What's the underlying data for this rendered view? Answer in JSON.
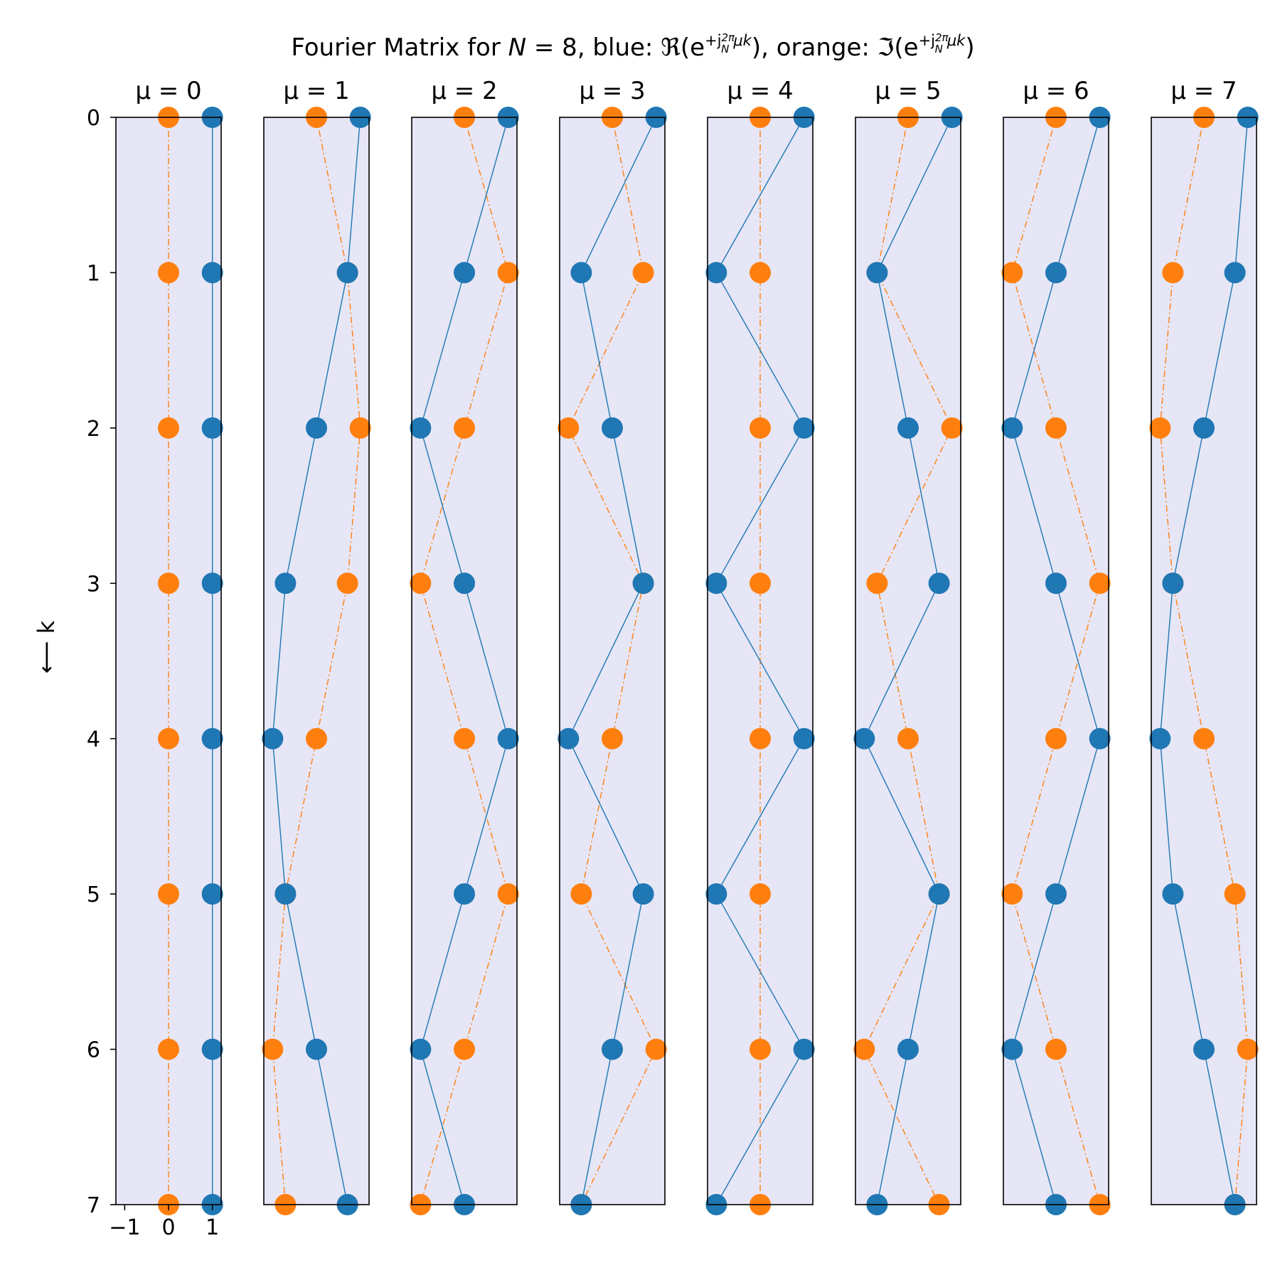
{
  "figure": {
    "title_parts": {
      "prefix": "Fourier Matrix for ",
      "n_var": "N",
      "n_eq": " = 8, blue: ",
      "re_sym": "ℜ",
      "e_open": "(e",
      "exp_sign": "+j",
      "frac_num": "2π",
      "frac_den": "N",
      "exp_rest": "μk",
      "close_mid": "), orange: ",
      "im_sym": "ℑ",
      "close_end": ")"
    },
    "ylabel": "⟵ k",
    "panel_title_prefix": "μ = "
  },
  "colors": {
    "real": "#1f77b4",
    "imag": "#ff7f0e",
    "panel_bg": "#e6e6f6",
    "frame": "#000000"
  },
  "chart_data": {
    "type": "line",
    "N": 8,
    "panels": [
      {
        "mu": 0,
        "title": "μ = 0",
        "real": [
          1,
          1,
          1,
          1,
          1,
          1,
          1,
          1
        ],
        "imag": [
          0,
          0,
          0,
          0,
          0,
          0,
          0,
          0
        ]
      },
      {
        "mu": 1,
        "title": "μ = 1",
        "real": [
          1,
          0.707,
          0,
          -0.707,
          -1,
          -0.707,
          0,
          0.707
        ],
        "imag": [
          0,
          0.707,
          1,
          0.707,
          0,
          -0.707,
          -1,
          -0.707
        ]
      },
      {
        "mu": 2,
        "title": "μ = 2",
        "real": [
          1,
          0,
          -1,
          0,
          1,
          0,
          -1,
          0
        ],
        "imag": [
          0,
          1,
          0,
          -1,
          0,
          1,
          0,
          -1
        ]
      },
      {
        "mu": 3,
        "title": "μ = 3",
        "real": [
          1,
          -0.707,
          0,
          0.707,
          -1,
          0.707,
          0,
          -0.707
        ],
        "imag": [
          0,
          0.707,
          -1,
          0.707,
          0,
          -0.707,
          1,
          -0.707
        ]
      },
      {
        "mu": 4,
        "title": "μ = 4",
        "real": [
          1,
          -1,
          1,
          -1,
          1,
          -1,
          1,
          -1
        ],
        "imag": [
          0,
          0,
          0,
          0,
          0,
          0,
          0,
          0
        ]
      },
      {
        "mu": 5,
        "title": "μ = 5",
        "real": [
          1,
          -0.707,
          0,
          0.707,
          -1,
          0.707,
          0,
          -0.707
        ],
        "imag": [
          0,
          -0.707,
          1,
          -0.707,
          0,
          0.707,
          -1,
          0.707
        ]
      },
      {
        "mu": 6,
        "title": "μ = 6",
        "real": [
          1,
          0,
          -1,
          0,
          1,
          0,
          -1,
          0
        ],
        "imag": [
          0,
          -1,
          0,
          1,
          0,
          -1,
          0,
          1
        ]
      },
      {
        "mu": 7,
        "title": "μ = 7",
        "real": [
          1,
          0.707,
          0,
          -0.707,
          -1,
          -0.707,
          0,
          0.707
        ],
        "imag": [
          0,
          -0.707,
          -1,
          -0.707,
          0,
          0.707,
          1,
          0.707
        ]
      }
    ],
    "y_ticks": [
      "0",
      "1",
      "2",
      "3",
      "4",
      "5",
      "6",
      "7"
    ],
    "y_range": [
      0,
      7
    ],
    "y_inverted": true,
    "x_range": [
      -1.2,
      1.2
    ],
    "x_ticks": [
      "−1",
      "0",
      "1"
    ],
    "x_tick_values": [
      -1,
      0,
      1
    ],
    "grid": false,
    "real_line_style": "solid",
    "imag_line_style": "dash-dot"
  }
}
